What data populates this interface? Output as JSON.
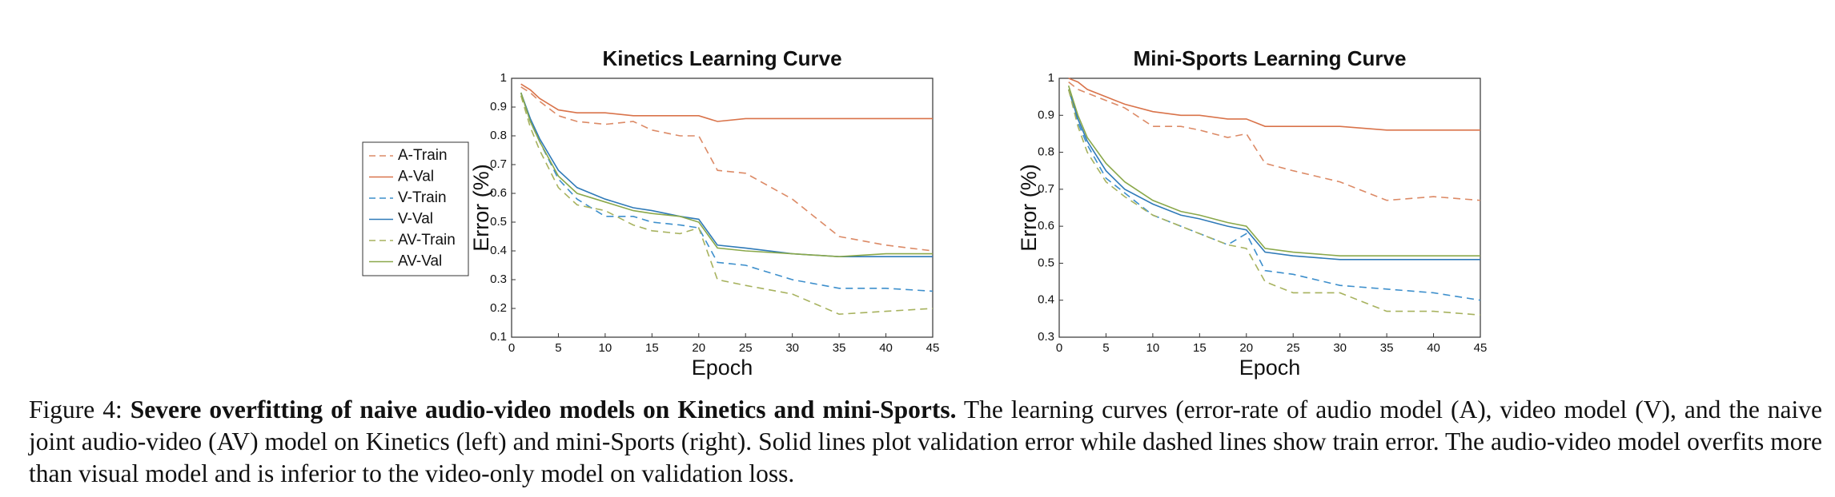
{
  "chart_data": [
    {
      "type": "line",
      "title": "Kinetics Learning Curve",
      "xlabel": "Epoch",
      "ylabel": "Error (%)",
      "x": [
        1,
        2,
        3,
        5,
        7,
        10,
        13,
        15,
        18,
        20,
        22,
        25,
        30,
        35,
        40,
        45
      ],
      "xlim": [
        0,
        45
      ],
      "xticks": [
        0,
        5,
        10,
        15,
        20,
        25,
        30,
        35,
        40,
        45
      ],
      "ylim": [
        0.1,
        1
      ],
      "yticks": [
        0.1,
        0.2,
        0.3,
        0.4,
        0.5,
        0.6,
        0.7,
        0.8,
        0.9,
        1
      ],
      "legend": "left",
      "series": [
        {
          "name": "A-Train",
          "color": "#dc8a66",
          "line_style": "dashed",
          "values": [
            0.97,
            0.95,
            0.92,
            0.87,
            0.85,
            0.84,
            0.85,
            0.82,
            0.8,
            0.8,
            0.68,
            0.67,
            0.58,
            0.45,
            0.42,
            0.4
          ]
        },
        {
          "name": "A-Val",
          "color": "#d9734a",
          "line_style": "solid",
          "values": [
            0.98,
            0.96,
            0.93,
            0.89,
            0.88,
            0.88,
            0.87,
            0.87,
            0.87,
            0.87,
            0.85,
            0.86,
            0.86,
            0.86,
            0.86,
            0.86
          ]
        },
        {
          "name": "V-Train",
          "color": "#3d8fcc",
          "line_style": "dashed",
          "values": [
            0.95,
            0.85,
            0.78,
            0.65,
            0.58,
            0.52,
            0.52,
            0.5,
            0.49,
            0.48,
            0.36,
            0.35,
            0.3,
            0.27,
            0.27,
            0.26
          ]
        },
        {
          "name": "V-Val",
          "color": "#2f7ab8",
          "line_style": "solid",
          "values": [
            0.95,
            0.86,
            0.79,
            0.68,
            0.62,
            0.58,
            0.55,
            0.54,
            0.52,
            0.51,
            0.42,
            0.41,
            0.39,
            0.38,
            0.38,
            0.38
          ]
        },
        {
          "name": "AV-Train",
          "color": "#a7b25e",
          "line_style": "dashed",
          "values": [
            0.94,
            0.83,
            0.75,
            0.62,
            0.56,
            0.54,
            0.49,
            0.47,
            0.46,
            0.48,
            0.3,
            0.28,
            0.25,
            0.18,
            0.19,
            0.2
          ]
        },
        {
          "name": "AV-Val",
          "color": "#8aa84a",
          "line_style": "solid",
          "values": [
            0.95,
            0.85,
            0.78,
            0.66,
            0.6,
            0.57,
            0.54,
            0.53,
            0.52,
            0.5,
            0.41,
            0.4,
            0.39,
            0.38,
            0.39,
            0.39
          ]
        }
      ]
    },
    {
      "type": "line",
      "title": "Mini-Sports Learning Curve",
      "xlabel": "Epoch",
      "ylabel": "Error (%)",
      "x": [
        1,
        2,
        3,
        5,
        7,
        10,
        13,
        15,
        18,
        20,
        22,
        25,
        30,
        35,
        40,
        45
      ],
      "xlim": [
        0,
        45
      ],
      "xticks": [
        0,
        5,
        10,
        15,
        20,
        25,
        30,
        35,
        40,
        45
      ],
      "ylim": [
        0.3,
        1
      ],
      "yticks": [
        0.3,
        0.4,
        0.5,
        0.6,
        0.7,
        0.8,
        0.9,
        1
      ],
      "series": [
        {
          "color": "#dc8a66",
          "line_style": "dashed",
          "values": [
            0.99,
            0.97,
            0.96,
            0.94,
            0.92,
            0.87,
            0.87,
            0.86,
            0.84,
            0.85,
            0.77,
            0.75,
            0.72,
            0.67,
            0.68,
            0.67
          ]
        },
        {
          "color": "#d9734a",
          "line_style": "solid",
          "values": [
            1.0,
            0.99,
            0.97,
            0.95,
            0.93,
            0.91,
            0.9,
            0.9,
            0.89,
            0.89,
            0.87,
            0.87,
            0.87,
            0.86,
            0.86,
            0.86
          ]
        },
        {
          "color": "#3d8fcc",
          "line_style": "dashed",
          "values": [
            0.97,
            0.88,
            0.82,
            0.73,
            0.69,
            0.63,
            0.6,
            0.58,
            0.55,
            0.58,
            0.48,
            0.47,
            0.44,
            0.43,
            0.42,
            0.4
          ]
        },
        {
          "color": "#2f7ab8",
          "line_style": "solid",
          "values": [
            0.97,
            0.89,
            0.83,
            0.75,
            0.7,
            0.66,
            0.63,
            0.62,
            0.6,
            0.59,
            0.53,
            0.52,
            0.51,
            0.51,
            0.51,
            0.51
          ]
        },
        {
          "color": "#a7b25e",
          "line_style": "dashed",
          "values": [
            0.97,
            0.87,
            0.8,
            0.72,
            0.68,
            0.63,
            0.6,
            0.58,
            0.55,
            0.54,
            0.45,
            0.42,
            0.42,
            0.37,
            0.37,
            0.36
          ]
        },
        {
          "color": "#8aa84a",
          "line_style": "solid",
          "values": [
            0.98,
            0.9,
            0.84,
            0.77,
            0.72,
            0.67,
            0.64,
            0.63,
            0.61,
            0.6,
            0.54,
            0.53,
            0.52,
            0.52,
            0.52,
            0.52
          ]
        }
      ]
    }
  ],
  "caption": {
    "label": "Figure 4:",
    "bold": "Severe overfitting of naive audio-video models on Kinetics and mini-Sports.",
    "text": "The learning curves (error-rate of audio model (A), video model (V), and the naive joint audio-video (AV) model on Kinetics (left) and mini-Sports (right). Solid lines plot validation error while dashed lines show train error. The audio-video model overfits more than visual model and is inferior to the video-only model on validation loss."
  }
}
